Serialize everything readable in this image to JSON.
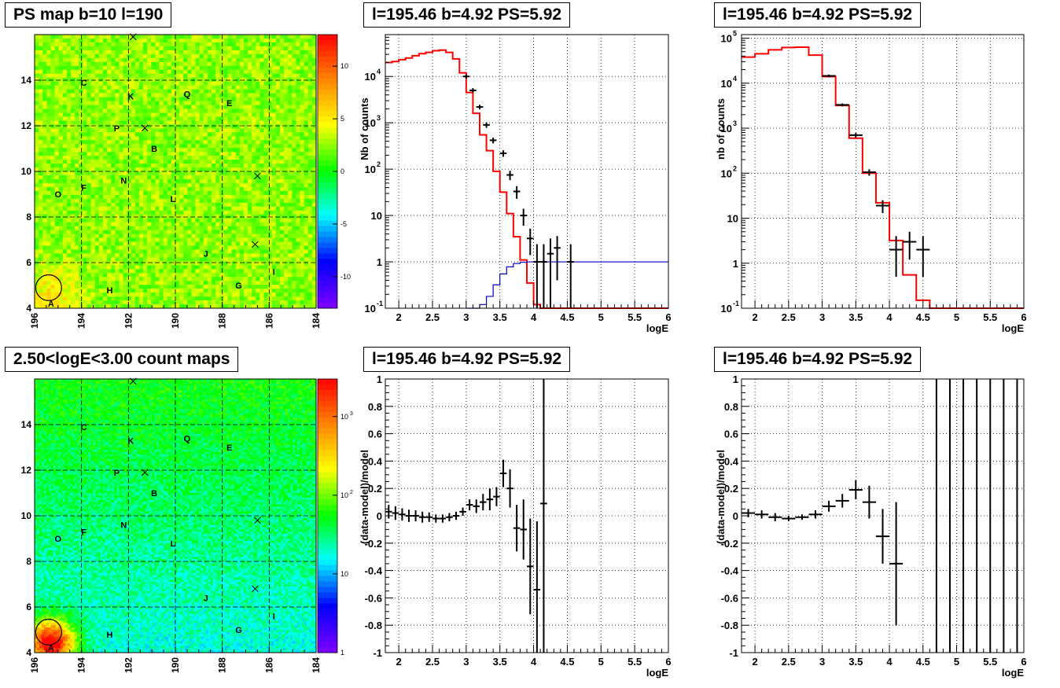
{
  "chart_data": [
    {
      "type": "heatmap",
      "title": "PS map b=10 l=190",
      "x_ticks": [
        "196",
        "194",
        "192",
        "190",
        "188",
        "186",
        "184"
      ],
      "y_ticks": [
        "4",
        "6",
        "8",
        "10",
        "12",
        "14"
      ],
      "xlim": [
        196,
        184
      ],
      "ylim": [
        4,
        16
      ],
      "z_ticks": [
        "10",
        "5",
        "0",
        "-5",
        "-10"
      ],
      "zlim": [
        -13,
        13
      ],
      "scale": "linear",
      "grid": true,
      "sources": [
        {
          "label": "A",
          "l": 195.3,
          "b": 4.2
        },
        {
          "label": "B",
          "l": 190.9,
          "b": 11.0
        },
        {
          "label": "C",
          "l": 193.9,
          "b": 13.9
        },
        {
          "label": "E",
          "l": 187.7,
          "b": 13.0
        },
        {
          "label": "F",
          "l": 193.9,
          "b": 9.3
        },
        {
          "label": "G",
          "l": 187.3,
          "b": 5.0
        },
        {
          "label": "H",
          "l": 192.8,
          "b": 4.8
        },
        {
          "label": "I",
          "l": 185.8,
          "b": 5.6
        },
        {
          "label": "J",
          "l": 188.7,
          "b": 6.4
        },
        {
          "label": "K",
          "l": 191.9,
          "b": 13.3
        },
        {
          "label": "L",
          "l": 190.1,
          "b": 8.8
        },
        {
          "label": "N",
          "l": 192.2,
          "b": 9.6
        },
        {
          "label": "O",
          "l": 195.0,
          "b": 9.0
        },
        {
          "label": "P",
          "l": 192.5,
          "b": 11.9
        },
        {
          "label": "Q",
          "l": 189.5,
          "b": 13.4
        }
      ],
      "crosses": [
        {
          "l": 191.8,
          "b": 15.9
        },
        {
          "l": 191.3,
          "b": 11.9
        },
        {
          "l": 186.5,
          "b": 9.8
        },
        {
          "l": 186.6,
          "b": 6.8
        }
      ],
      "circle": {
        "l": 195.4,
        "b": 4.9,
        "r": 0.55
      }
    },
    {
      "type": "line",
      "title": "l=195.46 b=4.92 PS=5.92",
      "xlabel": "logE",
      "ylabel": "Nb of counts",
      "yscale": "log",
      "xlim": [
        1.8,
        6
      ],
      "ylim": [
        0.1,
        80000
      ],
      "x_ticks": [
        "2",
        "2.5",
        "3",
        "3.5",
        "4",
        "4.5",
        "5",
        "5.5",
        "6"
      ],
      "y_ticks": [
        {
          "v": 0.1,
          "t": "10"
        },
        {
          "v": 1,
          "t": "1"
        },
        {
          "v": 10,
          "t": "10"
        },
        {
          "v": 100,
          "t": "10"
        },
        {
          "v": 1000,
          "t": "10"
        },
        {
          "v": 10000,
          "t": "10"
        }
      ],
      "grid": true,
      "series": [
        {
          "step": true,
          "color": "#ff0000",
          "bins": [
            1.8,
            1.9,
            2.0,
            2.1,
            2.2,
            2.3,
            2.4,
            2.5,
            2.6,
            2.7,
            2.8,
            2.9,
            3.0,
            3.1,
            3.2,
            3.3,
            3.4,
            3.5,
            3.6,
            3.7,
            3.8,
            3.9,
            4.0,
            4.1,
            4.2,
            4.3,
            4.4,
            4.5,
            6.0
          ],
          "values": [
            20000,
            21000,
            23000,
            25000,
            28000,
            31000,
            33000,
            36000,
            37000,
            33000,
            24000,
            12000,
            4500,
            1600,
            550,
            250,
            90,
            32,
            11,
            3.5,
            1.1,
            0.35,
            0.12,
            0.1,
            0.1,
            0.1,
            0.1,
            0.1
          ]
        },
        {
          "step": true,
          "color": "#0000cc",
          "bins": [
            3.0,
            3.1,
            3.2,
            3.3,
            3.4,
            3.5,
            3.6,
            3.7,
            3.8,
            3.9,
            4.0,
            4.1,
            4.2,
            4.3,
            4.4,
            4.5,
            6.0
          ],
          "values": [
            0.1,
            0.1,
            0.12,
            0.18,
            0.32,
            0.55,
            0.78,
            0.92,
            0.98,
            1.0,
            1.0,
            1.0,
            1.0,
            1.0,
            1.0,
            1.0
          ]
        }
      ],
      "points": [
        {
          "x": 3.0,
          "y": 10000,
          "hw": 0.05,
          "lo": 9000,
          "hi": 11000
        },
        {
          "x": 3.1,
          "y": 5000,
          "hw": 0.05,
          "lo": 4500,
          "hi": 5600
        },
        {
          "x": 3.2,
          "y": 2200,
          "hw": 0.05,
          "lo": 1950,
          "hi": 2450
        },
        {
          "x": 3.3,
          "y": 900,
          "hw": 0.05,
          "lo": 780,
          "hi": 1020
        },
        {
          "x": 3.4,
          "y": 420,
          "hw": 0.05,
          "lo": 360,
          "hi": 480
        },
        {
          "x": 3.55,
          "y": 220,
          "hw": 0.05,
          "lo": 185,
          "hi": 255
        },
        {
          "x": 3.65,
          "y": 75,
          "hw": 0.05,
          "lo": 58,
          "hi": 92
        },
        {
          "x": 3.75,
          "y": 33,
          "hw": 0.05,
          "lo": 23,
          "hi": 43
        },
        {
          "x": 3.85,
          "y": 10,
          "hw": 0.05,
          "lo": 6,
          "hi": 14
        },
        {
          "x": 3.95,
          "y": 3.2,
          "hw": 0.05,
          "lo": 1.4,
          "hi": 5.2
        },
        {
          "x": 4.05,
          "y": 1,
          "hw": 0.05,
          "lo": 0.1,
          "hi": 2.4
        },
        {
          "x": 4.15,
          "y": 1,
          "hw": 0.05,
          "lo": 0.1,
          "hi": 2.4
        },
        {
          "x": 4.25,
          "y": 1.5,
          "hw": 0.05,
          "lo": 0.1,
          "hi": 3.2
        },
        {
          "x": 4.35,
          "y": 2,
          "hw": 0.05,
          "lo": 0.4,
          "hi": 3.6
        },
        {
          "x": 4.55,
          "y": 1,
          "hw": 0.05,
          "lo": 0.1,
          "hi": 2.4
        }
      ]
    },
    {
      "type": "line",
      "title": "l=195.46 b=4.92 PS=5.92",
      "xlabel": "logE",
      "ylabel": "nb of counts",
      "yscale": "log",
      "xlim": [
        1.8,
        6
      ],
      "ylim": [
        0.1,
        120000
      ],
      "x_ticks": [
        "2",
        "2.5",
        "3",
        "3.5",
        "4",
        "4.5",
        "5",
        "5.5",
        "6"
      ],
      "y_ticks": [
        {
          "v": 0.1,
          "t": "10"
        },
        {
          "v": 1,
          "t": "1"
        },
        {
          "v": 10,
          "t": "10"
        },
        {
          "v": 100,
          "t": "10"
        },
        {
          "v": 1000,
          "t": "10"
        },
        {
          "v": 10000,
          "t": "10"
        },
        {
          "v": 100000,
          "t": "10"
        }
      ],
      "grid": true,
      "series": [
        {
          "step": true,
          "color": "#ff0000",
          "bins": [
            1.8,
            2.0,
            2.2,
            2.4,
            2.6,
            2.8,
            3.0,
            3.2,
            3.4,
            3.6,
            3.8,
            4.0,
            4.2,
            4.4,
            4.6,
            6.0
          ],
          "values": [
            38000,
            45000,
            55000,
            62000,
            63000,
            42000,
            14000,
            3200,
            600,
            100,
            22,
            3.2,
            0.55,
            0.15,
            0.1
          ]
        }
      ],
      "points": [
        {
          "x": 3.1,
          "y": 14500,
          "hw": 0.1,
          "lo": 13500,
          "hi": 15500
        },
        {
          "x": 3.3,
          "y": 3300,
          "hw": 0.1,
          "lo": 3050,
          "hi": 3550
        },
        {
          "x": 3.5,
          "y": 700,
          "hw": 0.1,
          "lo": 620,
          "hi": 780
        },
        {
          "x": 3.7,
          "y": 105,
          "hw": 0.1,
          "lo": 88,
          "hi": 122
        },
        {
          "x": 3.9,
          "y": 19,
          "hw": 0.1,
          "lo": 13,
          "hi": 25
        },
        {
          "x": 4.1,
          "y": 2,
          "hw": 0.1,
          "lo": 0.5,
          "hi": 4
        },
        {
          "x": 4.3,
          "y": 3,
          "hw": 0.1,
          "lo": 1.2,
          "hi": 5
        },
        {
          "x": 4.5,
          "y": 2,
          "hw": 0.1,
          "lo": 0.5,
          "hi": 4
        }
      ]
    },
    {
      "type": "heatmap",
      "title": "2.50<logE<3.00 count maps",
      "x_ticks": [
        "196",
        "194",
        "192",
        "190",
        "188",
        "186",
        "184"
      ],
      "y_ticks": [
        "4",
        "6",
        "8",
        "10",
        "12",
        "14"
      ],
      "xlim": [
        196,
        184
      ],
      "ylim": [
        4,
        16
      ],
      "z_ticks": [
        {
          "v": 1,
          "t": "1"
        },
        {
          "v": 10,
          "t": "10"
        },
        {
          "v": 100,
          "t": "10"
        },
        {
          "v": 1000,
          "t": "10"
        }
      ],
      "zlim": [
        1,
        3000
      ],
      "scale": "log",
      "grid": true,
      "sources": [
        {
          "label": "A",
          "l": 195.3,
          "b": 4.2
        },
        {
          "label": "B",
          "l": 190.9,
          "b": 11.0
        },
        {
          "label": "C",
          "l": 193.9,
          "b": 13.9
        },
        {
          "label": "E",
          "l": 187.7,
          "b": 13.0
        },
        {
          "label": "F",
          "l": 193.9,
          "b": 9.3
        },
        {
          "label": "G",
          "l": 187.3,
          "b": 5.0
        },
        {
          "label": "H",
          "l": 192.8,
          "b": 4.8
        },
        {
          "label": "I",
          "l": 185.8,
          "b": 5.6
        },
        {
          "label": "J",
          "l": 188.7,
          "b": 6.4
        },
        {
          "label": "K",
          "l": 191.9,
          "b": 13.3
        },
        {
          "label": "L",
          "l": 190.1,
          "b": 8.8
        },
        {
          "label": "N",
          "l": 192.2,
          "b": 9.6
        },
        {
          "label": "O",
          "l": 195.0,
          "b": 9.0
        },
        {
          "label": "P",
          "l": 192.5,
          "b": 11.9
        },
        {
          "label": "Q",
          "l": 189.5,
          "b": 13.4
        }
      ],
      "crosses": [
        {
          "l": 191.8,
          "b": 15.9
        },
        {
          "l": 191.3,
          "b": 11.9
        },
        {
          "l": 186.5,
          "b": 9.8
        },
        {
          "l": 186.6,
          "b": 6.8
        }
      ],
      "circle": {
        "l": 195.4,
        "b": 4.9,
        "r": 0.55
      }
    },
    {
      "type": "scatter",
      "title": "l=195.46 b=4.92 PS=5.92",
      "xlabel": "logE",
      "ylabel": "(data-model)/model",
      "xlim": [
        1.8,
        6
      ],
      "ylim": [
        -1,
        1
      ],
      "x_ticks": [
        "2",
        "2.5",
        "3",
        "3.5",
        "4",
        "4.5",
        "5",
        "5.5",
        "6"
      ],
      "y_ticks": [
        "-1",
        "-0.8",
        "-0.6",
        "-0.4",
        "-0.2",
        "0",
        "0.2",
        "0.4",
        "0.6",
        "0.8",
        "1"
      ],
      "grid": true,
      "points": [
        {
          "x": 1.85,
          "y": 0.03,
          "hw": 0.05,
          "e": 0.05
        },
        {
          "x": 1.95,
          "y": 0.02,
          "hw": 0.05,
          "e": 0.05
        },
        {
          "x": 2.05,
          "y": 0.01,
          "hw": 0.05,
          "e": 0.045
        },
        {
          "x": 2.15,
          "y": 0.0,
          "hw": 0.05,
          "e": 0.045
        },
        {
          "x": 2.25,
          "y": 0.0,
          "hw": 0.05,
          "e": 0.04
        },
        {
          "x": 2.35,
          "y": -0.01,
          "hw": 0.05,
          "e": 0.04
        },
        {
          "x": 2.45,
          "y": -0.01,
          "hw": 0.05,
          "e": 0.035
        },
        {
          "x": 2.55,
          "y": -0.02,
          "hw": 0.05,
          "e": 0.03
        },
        {
          "x": 2.65,
          "y": -0.02,
          "hw": 0.05,
          "e": 0.03
        },
        {
          "x": 2.75,
          "y": -0.01,
          "hw": 0.05,
          "e": 0.03
        },
        {
          "x": 2.85,
          "y": 0.0,
          "hw": 0.05,
          "e": 0.03
        },
        {
          "x": 2.95,
          "y": 0.03,
          "hw": 0.05,
          "e": 0.03
        },
        {
          "x": 3.05,
          "y": 0.08,
          "hw": 0.05,
          "e": 0.04
        },
        {
          "x": 3.15,
          "y": 0.07,
          "hw": 0.05,
          "e": 0.05
        },
        {
          "x": 3.25,
          "y": 0.1,
          "hw": 0.05,
          "e": 0.06
        },
        {
          "x": 3.35,
          "y": 0.12,
          "hw": 0.05,
          "e": 0.08
        },
        {
          "x": 3.45,
          "y": 0.14,
          "hw": 0.05,
          "e": 0.07
        },
        {
          "x": 3.55,
          "y": 0.31,
          "hw": 0.05,
          "e": 0.1
        },
        {
          "x": 3.65,
          "y": 0.2,
          "hw": 0.05,
          "e": 0.14
        },
        {
          "x": 3.75,
          "y": -0.09,
          "hw": 0.05,
          "e": 0.17
        },
        {
          "x": 3.85,
          "y": -0.1,
          "hw": 0.05,
          "e": 0.22
        },
        {
          "x": 3.95,
          "y": -0.37,
          "hw": 0.05,
          "e": 0.35
        },
        {
          "x": 4.05,
          "y": -0.54,
          "hw": 0.05,
          "e": 0.5
        },
        {
          "x": 4.15,
          "y": 0.09,
          "hw": 0.05,
          "e": 1.1
        }
      ]
    },
    {
      "type": "scatter",
      "title": "l=195.46 b=4.92 PS=5.92",
      "xlabel": "logE",
      "ylabel": "(data-model)/model",
      "xlim": [
        1.8,
        6
      ],
      "ylim": [
        -1,
        1
      ],
      "x_ticks": [
        "2",
        "2.5",
        "3",
        "3.5",
        "4",
        "4.5",
        "5",
        "5.5",
        "6"
      ],
      "y_ticks": [
        "-1",
        "-0.8",
        "-0.6",
        "-0.4",
        "-0.2",
        "0",
        "0.2",
        "0.4",
        "0.6",
        "0.8",
        "1"
      ],
      "grid": true,
      "points": [
        {
          "x": 1.9,
          "y": 0.02,
          "hw": 0.1,
          "e": 0.03
        },
        {
          "x": 2.1,
          "y": 0.01,
          "hw": 0.1,
          "e": 0.03
        },
        {
          "x": 2.3,
          "y": -0.01,
          "hw": 0.1,
          "e": 0.03
        },
        {
          "x": 2.5,
          "y": -0.02,
          "hw": 0.1,
          "e": 0.02
        },
        {
          "x": 2.7,
          "y": -0.01,
          "hw": 0.1,
          "e": 0.02
        },
        {
          "x": 2.9,
          "y": 0.01,
          "hw": 0.1,
          "e": 0.03
        },
        {
          "x": 3.1,
          "y": 0.07,
          "hw": 0.1,
          "e": 0.04
        },
        {
          "x": 3.3,
          "y": 0.11,
          "hw": 0.1,
          "e": 0.05
        },
        {
          "x": 3.5,
          "y": 0.19,
          "hw": 0.1,
          "e": 0.07
        },
        {
          "x": 3.7,
          "y": 0.1,
          "hw": 0.1,
          "e": 0.12
        },
        {
          "x": 3.9,
          "y": -0.15,
          "hw": 0.1,
          "e": 0.2
        },
        {
          "x": 4.1,
          "y": -0.35,
          "hw": 0.1,
          "e": 0.45
        },
        {
          "x": 4.7,
          "y": 0,
          "hw": 0,
          "e": 2
        },
        {
          "x": 4.9,
          "y": 0,
          "hw": 0,
          "e": 2
        },
        {
          "x": 5.1,
          "y": 0,
          "hw": 0,
          "e": 2
        },
        {
          "x": 5.3,
          "y": 0,
          "hw": 0,
          "e": 2
        },
        {
          "x": 5.5,
          "y": 0,
          "hw": 0,
          "e": 2
        },
        {
          "x": 5.7,
          "y": 0,
          "hw": 0,
          "e": 2
        },
        {
          "x": 5.9,
          "y": 0,
          "hw": 0,
          "e": 2
        }
      ]
    }
  ]
}
